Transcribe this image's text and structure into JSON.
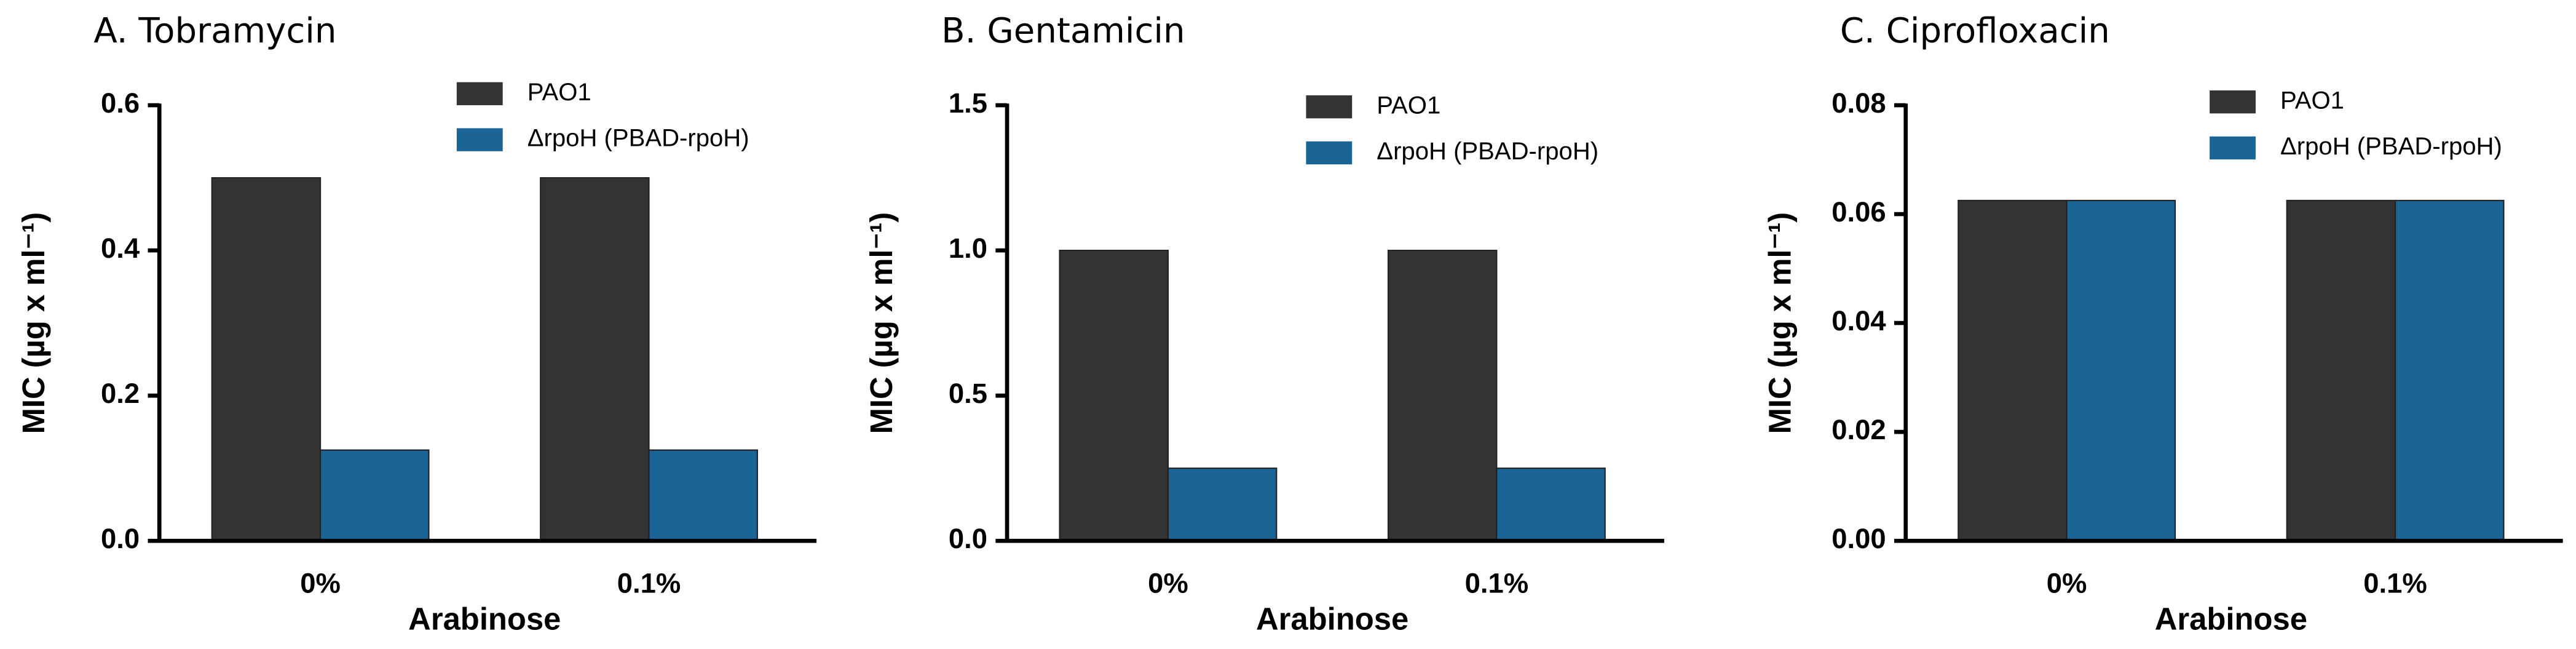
{
  "chart_data": [
    {
      "type": "bar",
      "title": "A. Tobramycin",
      "x_label": "Arabinose",
      "y_label": "MIC (µg x ml⁻¹)",
      "categories": [
        "0%",
        "0.1%"
      ],
      "series": [
        {
          "name": "PAO1",
          "color": "#333333",
          "values": [
            0.5,
            0.5
          ]
        },
        {
          "name": "ΔrpoH (PBAD-rpoH)",
          "color": "#1b6496",
          "values": [
            0.125,
            0.125
          ]
        }
      ],
      "ylim": [
        0,
        0.6
      ],
      "yticks": [
        {
          "value": 0,
          "label": "0.0"
        },
        0.2,
        0.4,
        0.6
      ],
      "legend": "upper right"
    },
    {
      "type": "bar",
      "title": "B. Gentamicin",
      "x_label": "Arabinose",
      "y_label": "MIC (µg x ml⁻¹)",
      "categories": [
        "0%",
        "0.1%"
      ],
      "series": [
        {
          "name": "PAO1",
          "color": "#333333",
          "values": [
            1,
            1
          ]
        },
        {
          "name": "ΔrpoH (PBAD-rpoH)",
          "color": "#1b6496",
          "values": [
            0.25,
            0.25
          ]
        }
      ],
      "ylim": [
        0,
        1.5
      ],
      "yticks": [
        {
          "value": 0,
          "label": "0.0"
        },
        0.5,
        {
          "value": 1,
          "label": "1.0"
        },
        1.5
      ],
      "legend": "upper right"
    },
    {
      "type": "bar",
      "title": "C. Ciprofloxacin",
      "x_label": "Arabinose",
      "y_label": "MIC (µg x ml⁻¹)",
      "categories": [
        "0%",
        "0.1%"
      ],
      "series": [
        {
          "name": "PAO1",
          "color": "#333333",
          "values": [
            0.0625,
            0.0625
          ]
        },
        {
          "name": "ΔrpoH (PBAD-rpoH)",
          "color": "#1b6496",
          "values": [
            0.0625,
            0.0625
          ]
        }
      ],
      "ylim": [
        0,
        0.08
      ],
      "yticks": [
        {
          "value": 0,
          "label": "0.00"
        },
        0.02,
        0.04,
        0.06,
        0.08
      ],
      "legend": "upper right"
    }
  ]
}
